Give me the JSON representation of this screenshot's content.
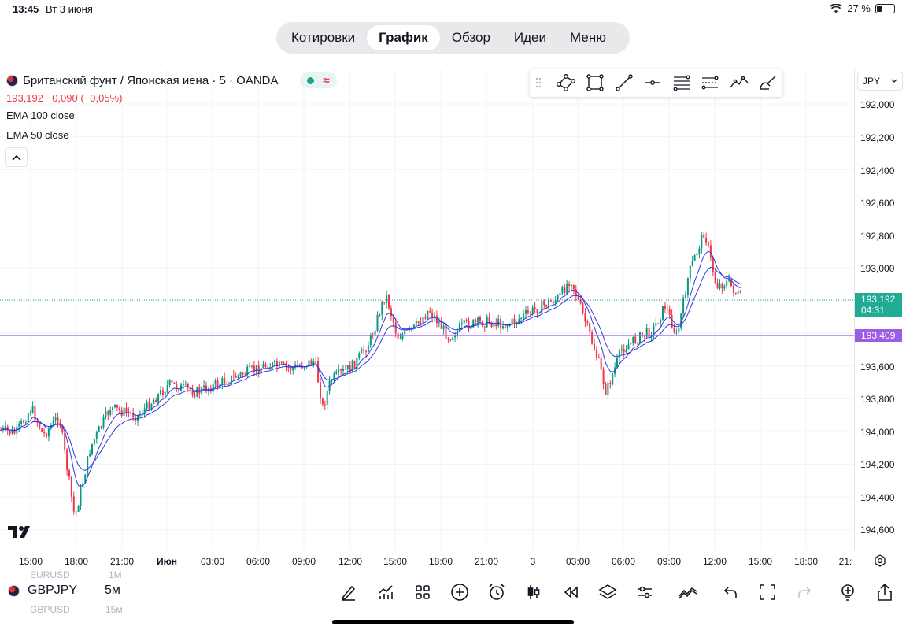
{
  "status_bar": {
    "time": "13:45",
    "date": "Вт 3 июня",
    "battery": "27 %",
    "battery_level": 0.27
  },
  "tabs": [
    {
      "label": "Котировки",
      "active": false
    },
    {
      "label": "График",
      "active": true
    },
    {
      "label": "Обзор",
      "active": false
    },
    {
      "label": "Идеи",
      "active": false
    },
    {
      "label": "Меню",
      "active": false
    }
  ],
  "legend": {
    "title": "Британский фунт / Японская иена · 5 · OANDA",
    "price_change": "193,192  −0,090 (−0,05%)",
    "indicators": [
      "EMA 100 close",
      "EMA 50 close"
    ]
  },
  "drawing_tools": [
    "node-path-icon",
    "rectangle-icon",
    "trend-line-icon",
    "horizontal-ray-icon",
    "fib-retracement-icon",
    "parallel-channel-icon",
    "pattern-icon",
    "brush-icon"
  ],
  "price_axis": {
    "currency": "JPY",
    "ticks": [
      "192,000",
      "192,200",
      "192,400",
      "192,600",
      "192,800",
      "193,000",
      "193,600",
      "193,800",
      "194,000",
      "194,200",
      "194,400",
      "194,600"
    ],
    "current_price": "193,192",
    "countdown": "04:31",
    "level_price": "193,409"
  },
  "time_axis": {
    "ticks": [
      "15:00",
      "18:00",
      "21:00",
      "Июн",
      "03:00",
      "06:00",
      "09:00",
      "12:00",
      "15:00",
      "18:00",
      "21:00",
      "3",
      "03:00",
      "06:00",
      "09:00",
      "12:00",
      "15:00",
      "18:00",
      "21:"
    ]
  },
  "bottom": {
    "symbol": "GBPJPY",
    "interval": "5м",
    "ghost_above_symbol": "EURUSD",
    "ghost_above_interval": "1M",
    "ghost_below_symbol": "GBPUSD",
    "ghost_below_interval": "15м"
  },
  "colors": {
    "up": "#089981",
    "down": "#f23645",
    "ema": "#2f3ad9",
    "level_line": "#9c5ce6",
    "current_price_bg": "#22ab94"
  },
  "chart_data": {
    "type": "candlestick",
    "title": "Британский фунт / Японская иена · 5 · OANDA",
    "y_axis_label_values": [
      "192,000",
      "192,200",
      "192,400",
      "192,600",
      "192,800",
      "193,000",
      "193,600",
      "193,800",
      "194,000",
      "194,200",
      "194,400",
      "194,600"
    ],
    "indicators": [
      "EMA 100 close",
      "EMA 50 close"
    ],
    "horizontal_level": "193,409",
    "last_price": "193,192"
  }
}
